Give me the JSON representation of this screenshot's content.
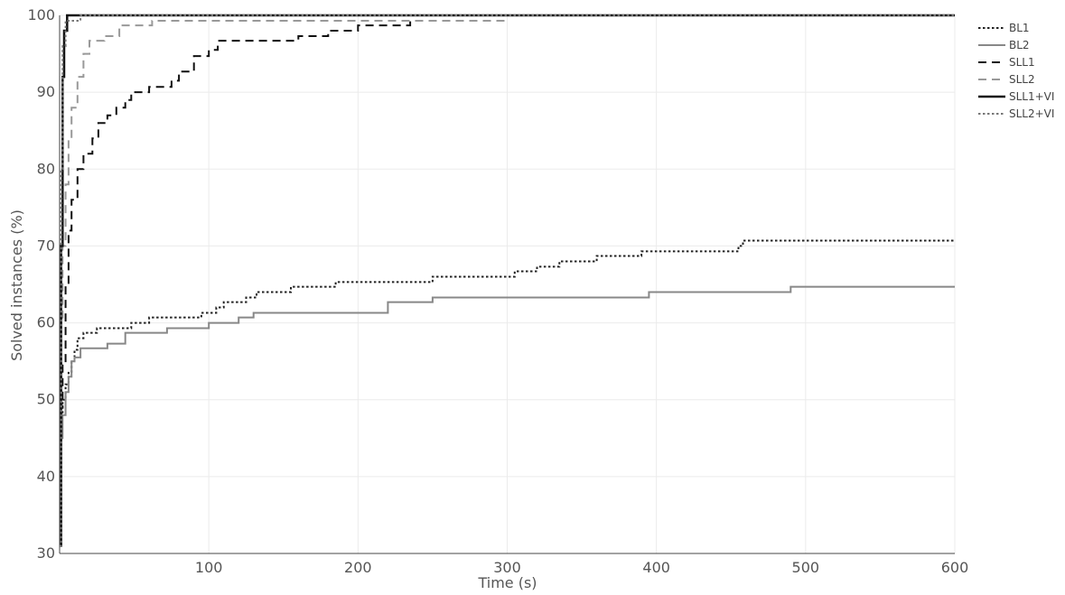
{
  "chart_data": {
    "type": "line",
    "title": "",
    "xlabel": "Time (s)",
    "ylabel": "Solved instances (%)",
    "xlim": [
      0,
      600
    ],
    "ylim": [
      30,
      100
    ],
    "x_ticks": [
      100,
      200,
      300,
      400,
      500,
      600
    ],
    "y_ticks": [
      30,
      40,
      50,
      60,
      70,
      80,
      90,
      100
    ],
    "grid": true,
    "legend_position": "top-right",
    "series": [
      {
        "name": "BL1",
        "color": "#222222",
        "dash": "dotted",
        "points": [
          [
            0,
            31
          ],
          [
            1,
            48
          ],
          [
            2,
            50
          ],
          [
            4,
            52
          ],
          [
            6,
            53.5
          ],
          [
            8,
            55
          ],
          [
            10,
            56.5
          ],
          [
            12,
            58
          ],
          [
            16,
            58.7
          ],
          [
            25,
            59.3
          ],
          [
            48,
            60
          ],
          [
            60,
            60.7
          ],
          [
            95,
            61.3
          ],
          [
            105,
            62
          ],
          [
            110,
            62.7
          ],
          [
            125,
            63.3
          ],
          [
            132,
            64
          ],
          [
            155,
            64.7
          ],
          [
            185,
            65.3
          ],
          [
            250,
            66
          ],
          [
            305,
            66.7
          ],
          [
            320,
            67.3
          ],
          [
            335,
            68
          ],
          [
            360,
            68.7
          ],
          [
            390,
            69.3
          ],
          [
            410,
            69.3
          ],
          [
            455,
            70
          ],
          [
            458,
            70.7
          ],
          [
            600,
            70.7
          ]
        ]
      },
      {
        "name": "BL2",
        "color": "#888888",
        "dash": "solid",
        "points": [
          [
            0,
            31
          ],
          [
            1,
            45
          ],
          [
            2,
            48
          ],
          [
            4,
            51
          ],
          [
            6,
            53
          ],
          [
            8,
            55
          ],
          [
            10,
            55.5
          ],
          [
            14,
            56.7
          ],
          [
            32,
            57.3
          ],
          [
            44,
            58.7
          ],
          [
            72,
            59.3
          ],
          [
            100,
            60
          ],
          [
            120,
            60.7
          ],
          [
            130,
            61.3
          ],
          [
            220,
            62.7
          ],
          [
            250,
            63.3
          ],
          [
            395,
            64
          ],
          [
            490,
            64.7
          ],
          [
            600,
            64.7
          ]
        ]
      },
      {
        "name": "SLL1",
        "color": "#111111",
        "dash": "dashed",
        "points": [
          [
            0,
            31
          ],
          [
            1,
            49
          ],
          [
            2,
            55
          ],
          [
            4,
            65
          ],
          [
            6,
            72
          ],
          [
            8,
            76
          ],
          [
            12,
            80
          ],
          [
            16,
            82
          ],
          [
            22,
            84
          ],
          [
            26,
            86
          ],
          [
            32,
            87
          ],
          [
            38,
            88
          ],
          [
            44,
            89
          ],
          [
            48,
            90
          ],
          [
            60,
            90.7
          ],
          [
            75,
            91.5
          ],
          [
            80,
            92.7
          ],
          [
            90,
            94.7
          ],
          [
            100,
            95.5
          ],
          [
            106,
            96.7
          ],
          [
            160,
            97.3
          ],
          [
            180,
            98
          ],
          [
            200,
            98.7
          ],
          [
            235,
            99.3
          ],
          [
            245,
            99.3
          ]
        ]
      },
      {
        "name": "SLL2",
        "color": "#999999",
        "dash": "dashed",
        "points": [
          [
            0,
            31
          ],
          [
            1,
            60
          ],
          [
            2,
            70
          ],
          [
            4,
            78
          ],
          [
            6,
            84
          ],
          [
            8,
            88
          ],
          [
            12,
            92
          ],
          [
            16,
            95
          ],
          [
            20,
            96.7
          ],
          [
            30,
            97.3
          ],
          [
            40,
            98.7
          ],
          [
            62,
            99.3
          ],
          [
            300,
            99.3
          ]
        ]
      },
      {
        "name": "SLL1+VI",
        "color": "#111111",
        "dash": "solid",
        "points": [
          [
            0,
            31
          ],
          [
            1,
            70
          ],
          [
            2,
            92
          ],
          [
            3,
            98
          ],
          [
            5,
            100
          ],
          [
            600,
            100
          ]
        ]
      },
      {
        "name": "SLL2+VI",
        "color": "#777777",
        "dash": "dotted",
        "points": [
          [
            0,
            31
          ],
          [
            1,
            80
          ],
          [
            2,
            96
          ],
          [
            4,
            99.3
          ],
          [
            14,
            100
          ],
          [
            600,
            100
          ]
        ]
      }
    ]
  }
}
